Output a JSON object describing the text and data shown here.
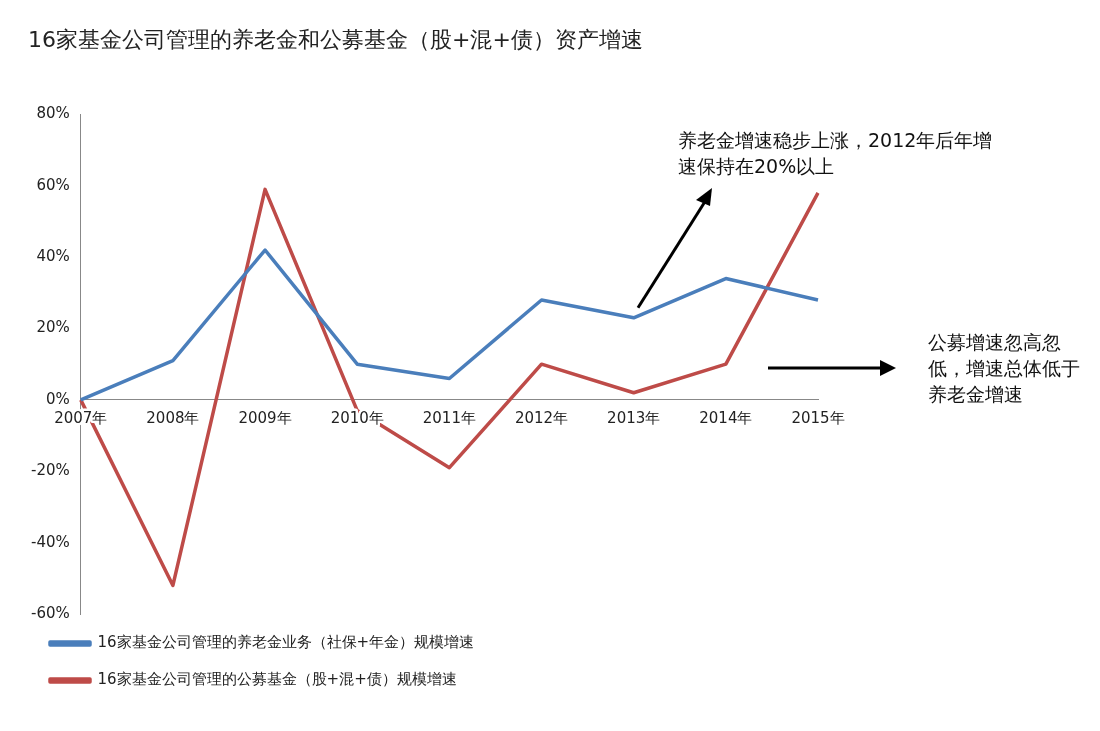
{
  "chart_data": {
    "type": "line",
    "title": "16家基金公司管理的养老金和公募基金（股+混+债）资产增速",
    "categories": [
      "2007年",
      "2008年",
      "2009年",
      "2010年",
      "2011年",
      "2012年",
      "2013年",
      "2014年",
      "2015年"
    ],
    "series": [
      {
        "name": "16家基金公司管理的养老金业务（社保+年金）规模增速",
        "color": "#4a7ebb",
        "values": [
          0,
          11,
          42,
          10,
          6,
          28,
          23,
          34,
          28
        ]
      },
      {
        "name": "16家基金公司管理的公募基金（股+混+债）规模增速",
        "color": "#be4b48",
        "values": [
          0,
          -52,
          59,
          -3,
          -19,
          10,
          2,
          10,
          58
        ]
      }
    ],
    "ylim": [
      -60,
      80
    ],
    "yticks": [
      {
        "value": -60,
        "label": "-60%"
      },
      {
        "value": -40,
        "label": "-40%"
      },
      {
        "value": -20,
        "label": "-20%"
      },
      {
        "value": 0,
        "label": "0%"
      },
      {
        "value": 20,
        "label": "20%"
      },
      {
        "value": 40,
        "label": "40%"
      },
      {
        "value": 60,
        "label": "60%"
      },
      {
        "value": 80,
        "label": "80%"
      }
    ],
    "grid": false,
    "legend": "bottom",
    "marker": "none",
    "line_style": "solid",
    "annotations": [
      "养老金增速稳步上涨，2012年后年增速保持在20%以上",
      "公募增速忽高忽低，增速总体低于养老金增速"
    ]
  }
}
